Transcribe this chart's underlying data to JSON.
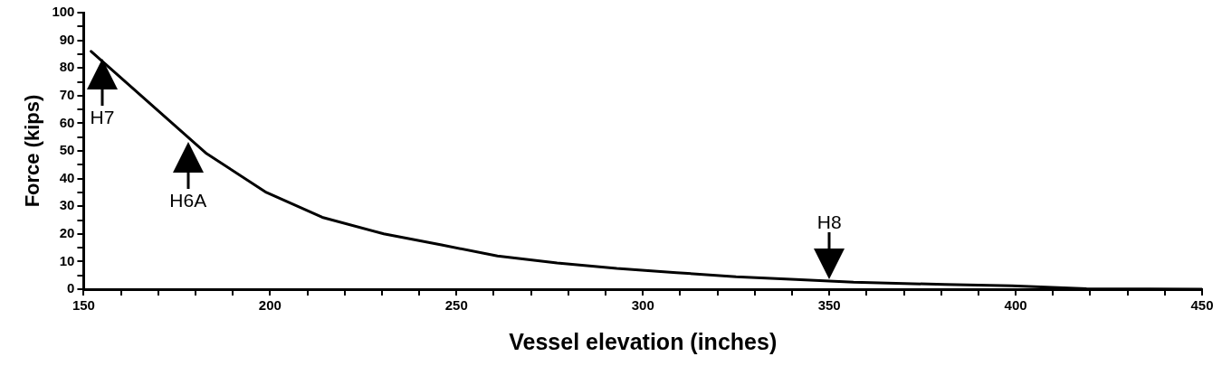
{
  "chart_data": {
    "type": "line",
    "xlabel": "Vessel elevation (inches)",
    "ylabel": "Force (kips)",
    "series": [
      {
        "color": "#000000",
        "x": [
          152,
          183,
          199,
          214,
          230.5,
          246,
          261,
          277,
          293,
          309,
          325,
          341,
          356.5,
          381,
          399,
          419,
          450
        ],
        "values": [
          86,
          49,
          35,
          26,
          20,
          16,
          12,
          9.5,
          7.5,
          6,
          4.5,
          3.5,
          2.5,
          1.7,
          1.2,
          0.2,
          0
        ]
      }
    ],
    "xlim": [
      150,
      450
    ],
    "xticks": [
      150,
      {
        "value": 160,
        "label": null
      },
      {
        "value": 170,
        "label": null
      },
      {
        "value": 180,
        "label": null
      },
      {
        "value": 190,
        "label": null
      },
      200,
      {
        "value": 210,
        "label": null
      },
      {
        "value": 220,
        "label": null
      },
      {
        "value": 230,
        "label": null
      },
      {
        "value": 240,
        "label": null
      },
      250,
      {
        "value": 260,
        "label": null
      },
      {
        "value": 270,
        "label": null
      },
      {
        "value": 280,
        "label": null
      },
      {
        "value": 290,
        "label": null
      },
      300,
      {
        "value": 310,
        "label": null
      },
      {
        "value": 320,
        "label": null
      },
      {
        "value": 330,
        "label": null
      },
      {
        "value": 340,
        "label": null
      },
      350,
      {
        "value": 360,
        "label": null
      },
      {
        "value": 370,
        "label": null
      },
      {
        "value": 380,
        "label": null
      },
      {
        "value": 390,
        "label": null
      },
      400,
      {
        "value": 410,
        "label": null
      },
      {
        "value": 420,
        "label": null
      },
      {
        "value": 430,
        "label": null
      },
      {
        "value": 440,
        "label": null
      },
      450
    ],
    "ylim": [
      0,
      100
    ],
    "yticks": [
      0,
      {
        "value": 5,
        "label": null
      },
      10,
      {
        "value": 15,
        "label": null
      },
      20,
      {
        "value": 25,
        "label": null
      },
      30,
      {
        "value": 35,
        "label": null
      },
      40,
      {
        "value": 45,
        "label": null
      },
      50,
      {
        "value": 55,
        "label": null
      },
      60,
      {
        "value": 65,
        "label": null
      },
      70,
      {
        "value": 75,
        "label": null
      },
      80,
      {
        "value": 85,
        "label": null
      },
      90,
      {
        "value": 95,
        "label": null
      },
      100
    ],
    "grid": false,
    "legend": false,
    "annotations": [
      {
        "text": "H7",
        "x": 155,
        "y": 84
      },
      {
        "text": "H6A",
        "x": 178,
        "y": 54
      },
      {
        "text": "H8",
        "x": 350,
        "y": 3
      }
    ]
  }
}
